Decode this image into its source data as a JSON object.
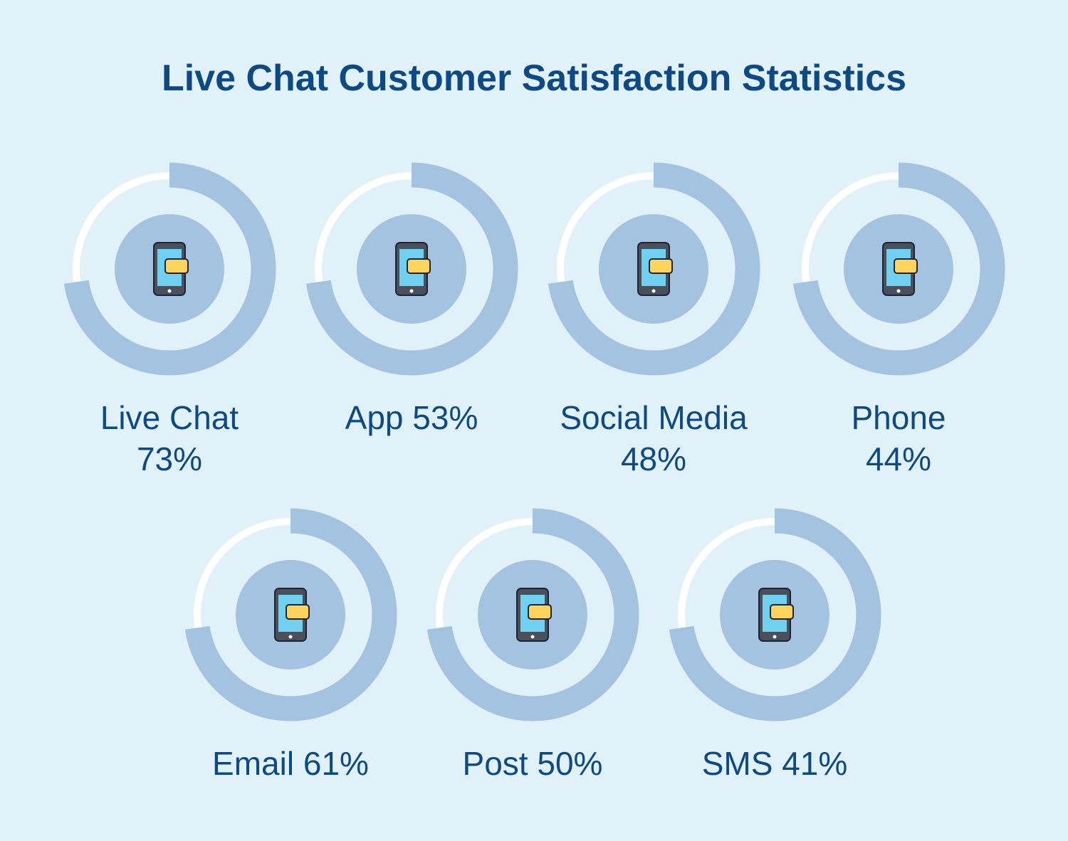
{
  "header": {
    "title": "Live Chat Customer Satisfaction Statistics"
  },
  "items": [
    {
      "name": "Live Chat",
      "value": "73%"
    },
    {
      "name": "App",
      "value": "53%"
    },
    {
      "name": "Social Media",
      "value": "48%"
    },
    {
      "name": "Phone",
      "value": "44%"
    },
    {
      "name": "Email",
      "value": "61%"
    },
    {
      "name": "Post",
      "value": "50%"
    },
    {
      "name": "SMS",
      "value": "41%"
    }
  ]
}
